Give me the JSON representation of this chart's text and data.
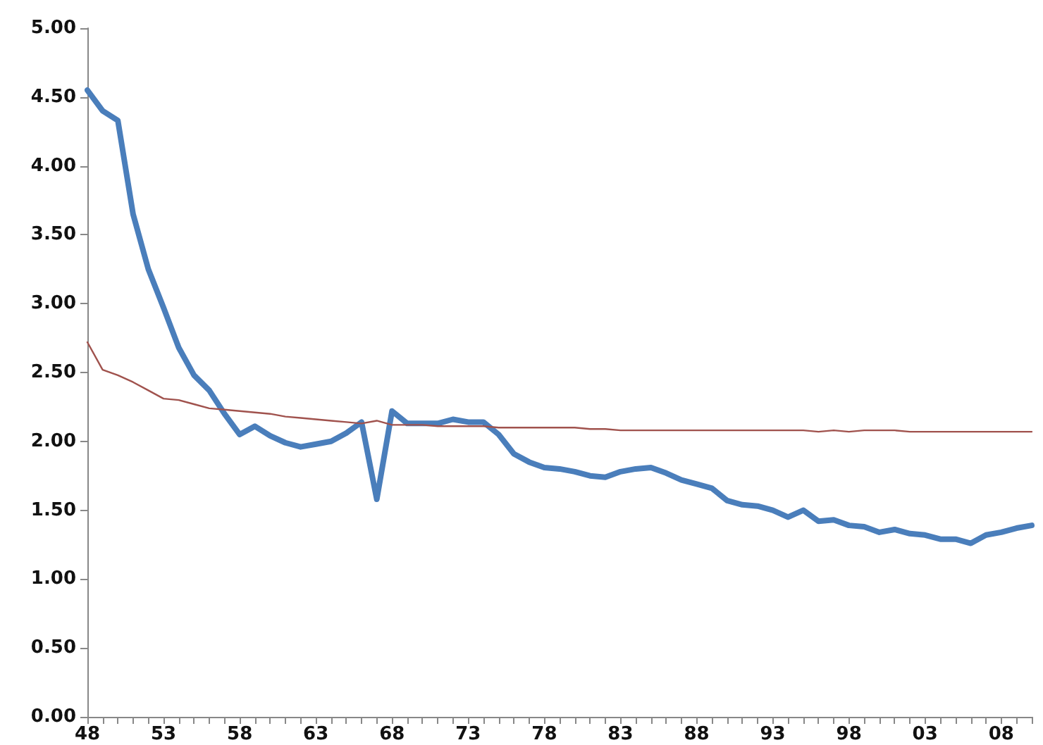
{
  "chart_data": {
    "type": "line",
    "categories": [
      "48",
      null,
      null,
      null,
      null,
      "53",
      null,
      null,
      null,
      null,
      "58",
      null,
      null,
      null,
      null,
      "63",
      null,
      null,
      null,
      null,
      "68",
      null,
      null,
      null,
      null,
      "73",
      null,
      null,
      null,
      null,
      "78",
      null,
      null,
      null,
      null,
      "83",
      null,
      null,
      null,
      null,
      "88",
      null,
      null,
      null,
      null,
      "93",
      null,
      null,
      null,
      null,
      "98",
      null,
      null,
      null,
      null,
      "03",
      null,
      null,
      null,
      null,
      "08",
      null,
      null
    ],
    "series": [
      {
        "color": "#4a7ebb",
        "values": [
          4.55,
          4.4,
          4.33,
          3.65,
          3.25,
          2.97,
          2.68,
          2.48,
          2.37,
          2.2,
          2.05,
          2.11,
          2.04,
          1.99,
          1.96,
          1.98,
          2.0,
          2.06,
          2.14,
          1.58,
          2.22,
          2.13,
          2.13,
          2.13,
          2.16,
          2.14,
          2.14,
          2.05,
          1.91,
          1.85,
          1.81,
          1.8,
          1.78,
          1.75,
          1.74,
          1.78,
          1.8,
          1.81,
          1.77,
          1.72,
          1.69,
          1.66,
          1.57,
          1.54,
          1.53,
          1.5,
          1.45,
          1.5,
          1.42,
          1.43,
          1.39,
          1.38,
          1.34,
          1.36,
          1.33,
          1.32,
          1.29,
          1.29,
          1.26,
          1.32,
          1.34,
          1.37,
          1.39
        ]
      },
      {
        "color": "#a0524d",
        "values": [
          2.72,
          2.52,
          2.48,
          2.43,
          2.37,
          2.31,
          2.3,
          2.27,
          2.24,
          2.23,
          2.22,
          2.21,
          2.2,
          2.18,
          2.17,
          2.16,
          2.15,
          2.14,
          2.13,
          2.15,
          2.12,
          2.12,
          2.12,
          2.11,
          2.11,
          2.11,
          2.11,
          2.1,
          2.1,
          2.1,
          2.1,
          2.1,
          2.1,
          2.09,
          2.09,
          2.08,
          2.08,
          2.08,
          2.08,
          2.08,
          2.08,
          2.08,
          2.08,
          2.08,
          2.08,
          2.08,
          2.08,
          2.08,
          2.07,
          2.08,
          2.07,
          2.08,
          2.08,
          2.08,
          2.07,
          2.07,
          2.07,
          2.07,
          2.07,
          2.07,
          2.07,
          2.07,
          2.07
        ]
      }
    ],
    "ylim": [
      0,
      5
    ],
    "yticks": [
      {
        "value": 0,
        "label": "0.00"
      },
      {
        "value": 0.5,
        "label": "0.50"
      },
      {
        "value": 1,
        "label": "1.00"
      },
      {
        "value": 1.5,
        "label": "1.50"
      },
      {
        "value": 2,
        "label": "2.00"
      },
      {
        "value": 2.5,
        "label": "2.50"
      },
      {
        "value": 3,
        "label": "3.00"
      },
      {
        "value": 3.5,
        "label": "3.50"
      },
      {
        "value": 4,
        "label": "4.00"
      },
      {
        "value": 4.5,
        "label": "4.50"
      },
      {
        "value": 5,
        "label": "5.00"
      }
    ],
    "grid": false,
    "marker": "none",
    "line_style": "solid"
  }
}
